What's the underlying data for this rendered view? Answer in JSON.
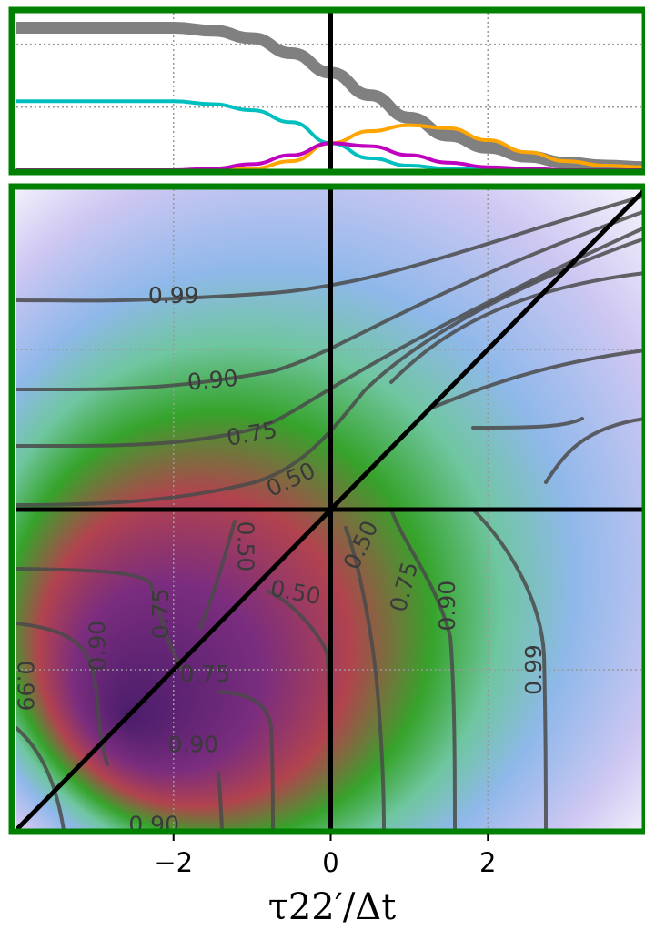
{
  "chart_data": [
    {
      "type": "line",
      "panel": "top",
      "xlim": [
        -4,
        4
      ],
      "ylim": [
        0,
        1.05
      ],
      "grid": true,
      "x": [
        -4,
        -3,
        -2,
        -1.5,
        -1,
        -0.5,
        0,
        0.5,
        1,
        1.5,
        2,
        2.5,
        3,
        3.5,
        4
      ],
      "series": [
        {
          "color": "#808080",
          "values": [
            0.95,
            0.95,
            0.95,
            0.93,
            0.88,
            0.78,
            0.65,
            0.5,
            0.35,
            0.23,
            0.15,
            0.09,
            0.05,
            0.03,
            0.02
          ]
        },
        {
          "color": "#00bfbf",
          "values": [
            0.46,
            0.46,
            0.46,
            0.44,
            0.4,
            0.32,
            0.18,
            0.08,
            0.03,
            0.01,
            0.005,
            0.0,
            0.0,
            0.0,
            0.0
          ]
        },
        {
          "color": "#ffa500",
          "values": [
            0.0,
            0.0,
            0.0,
            0.0,
            0.01,
            0.06,
            0.18,
            0.26,
            0.3,
            0.28,
            0.2,
            0.12,
            0.06,
            0.03,
            0.02
          ]
        },
        {
          "color": "#bf00bf",
          "values": [
            0.0,
            0.0,
            0.0,
            0.01,
            0.04,
            0.1,
            0.18,
            0.16,
            0.1,
            0.05,
            0.02,
            0.01,
            0.0,
            0.0,
            0.0
          ]
        }
      ],
      "vlines": [
        0
      ]
    },
    {
      "type": "heatmap",
      "panel": "bottom",
      "xlim": [
        -4,
        4
      ],
      "ylim": [
        -4,
        4
      ],
      "grid": true,
      "colormap": [
        "#4a1d6b",
        "#7b2d7e",
        "#b2434e",
        "#36a32b",
        "#5bbd87",
        "#8fb8ea",
        "#cdc7f2",
        "#ffffff"
      ],
      "contour_levels": [
        0.5,
        0.75,
        0.9,
        0.99
      ],
      "contour_labels": [
        {
          "text": "0.99",
          "x": -2.0,
          "y": 2.66
        },
        {
          "text": "0.90",
          "x": -1.5,
          "y": 1.6
        },
        {
          "text": "0.75",
          "x": -1.0,
          "y": 0.93
        },
        {
          "text": "0.50",
          "x": -0.5,
          "y": 0.36
        },
        {
          "text": "0.50",
          "x": -1.1,
          "y": -0.46
        },
        {
          "text": "0.50",
          "x": 0.4,
          "y": -0.45
        },
        {
          "text": "0.50",
          "x": -0.45,
          "y": -1.05
        },
        {
          "text": "0.75",
          "x": -2.15,
          "y": -1.3
        },
        {
          "text": "0.75",
          "x": 0.95,
          "y": -0.97
        },
        {
          "text": "0.90",
          "x": -2.95,
          "y": -1.7
        },
        {
          "text": "0.90",
          "x": 1.5,
          "y": -1.2
        },
        {
          "text": "0.75",
          "x": -1.6,
          "y": -2.07
        },
        {
          "text": "0.90",
          "x": -1.75,
          "y": -2.95
        },
        {
          "text": "0.99",
          "x": 2.6,
          "y": -2.0
        },
        {
          "text": "0.99",
          "x": -3.9,
          "y": -2.2
        },
        {
          "text": "0.90",
          "x": -2.25,
          "y": -3.95
        }
      ],
      "vlines": [
        0
      ],
      "hlines": [
        0
      ],
      "diagonal": true
    }
  ],
  "axes": {
    "x_ticks": [
      -2,
      0,
      2
    ],
    "x_tick_labels": [
      "−2",
      "0",
      "2"
    ],
    "xlabel": "τ22′/Δt"
  },
  "colors": {
    "frame": "#008000",
    "grid": "#9a9a9a",
    "contour": "#4a4a4a"
  }
}
